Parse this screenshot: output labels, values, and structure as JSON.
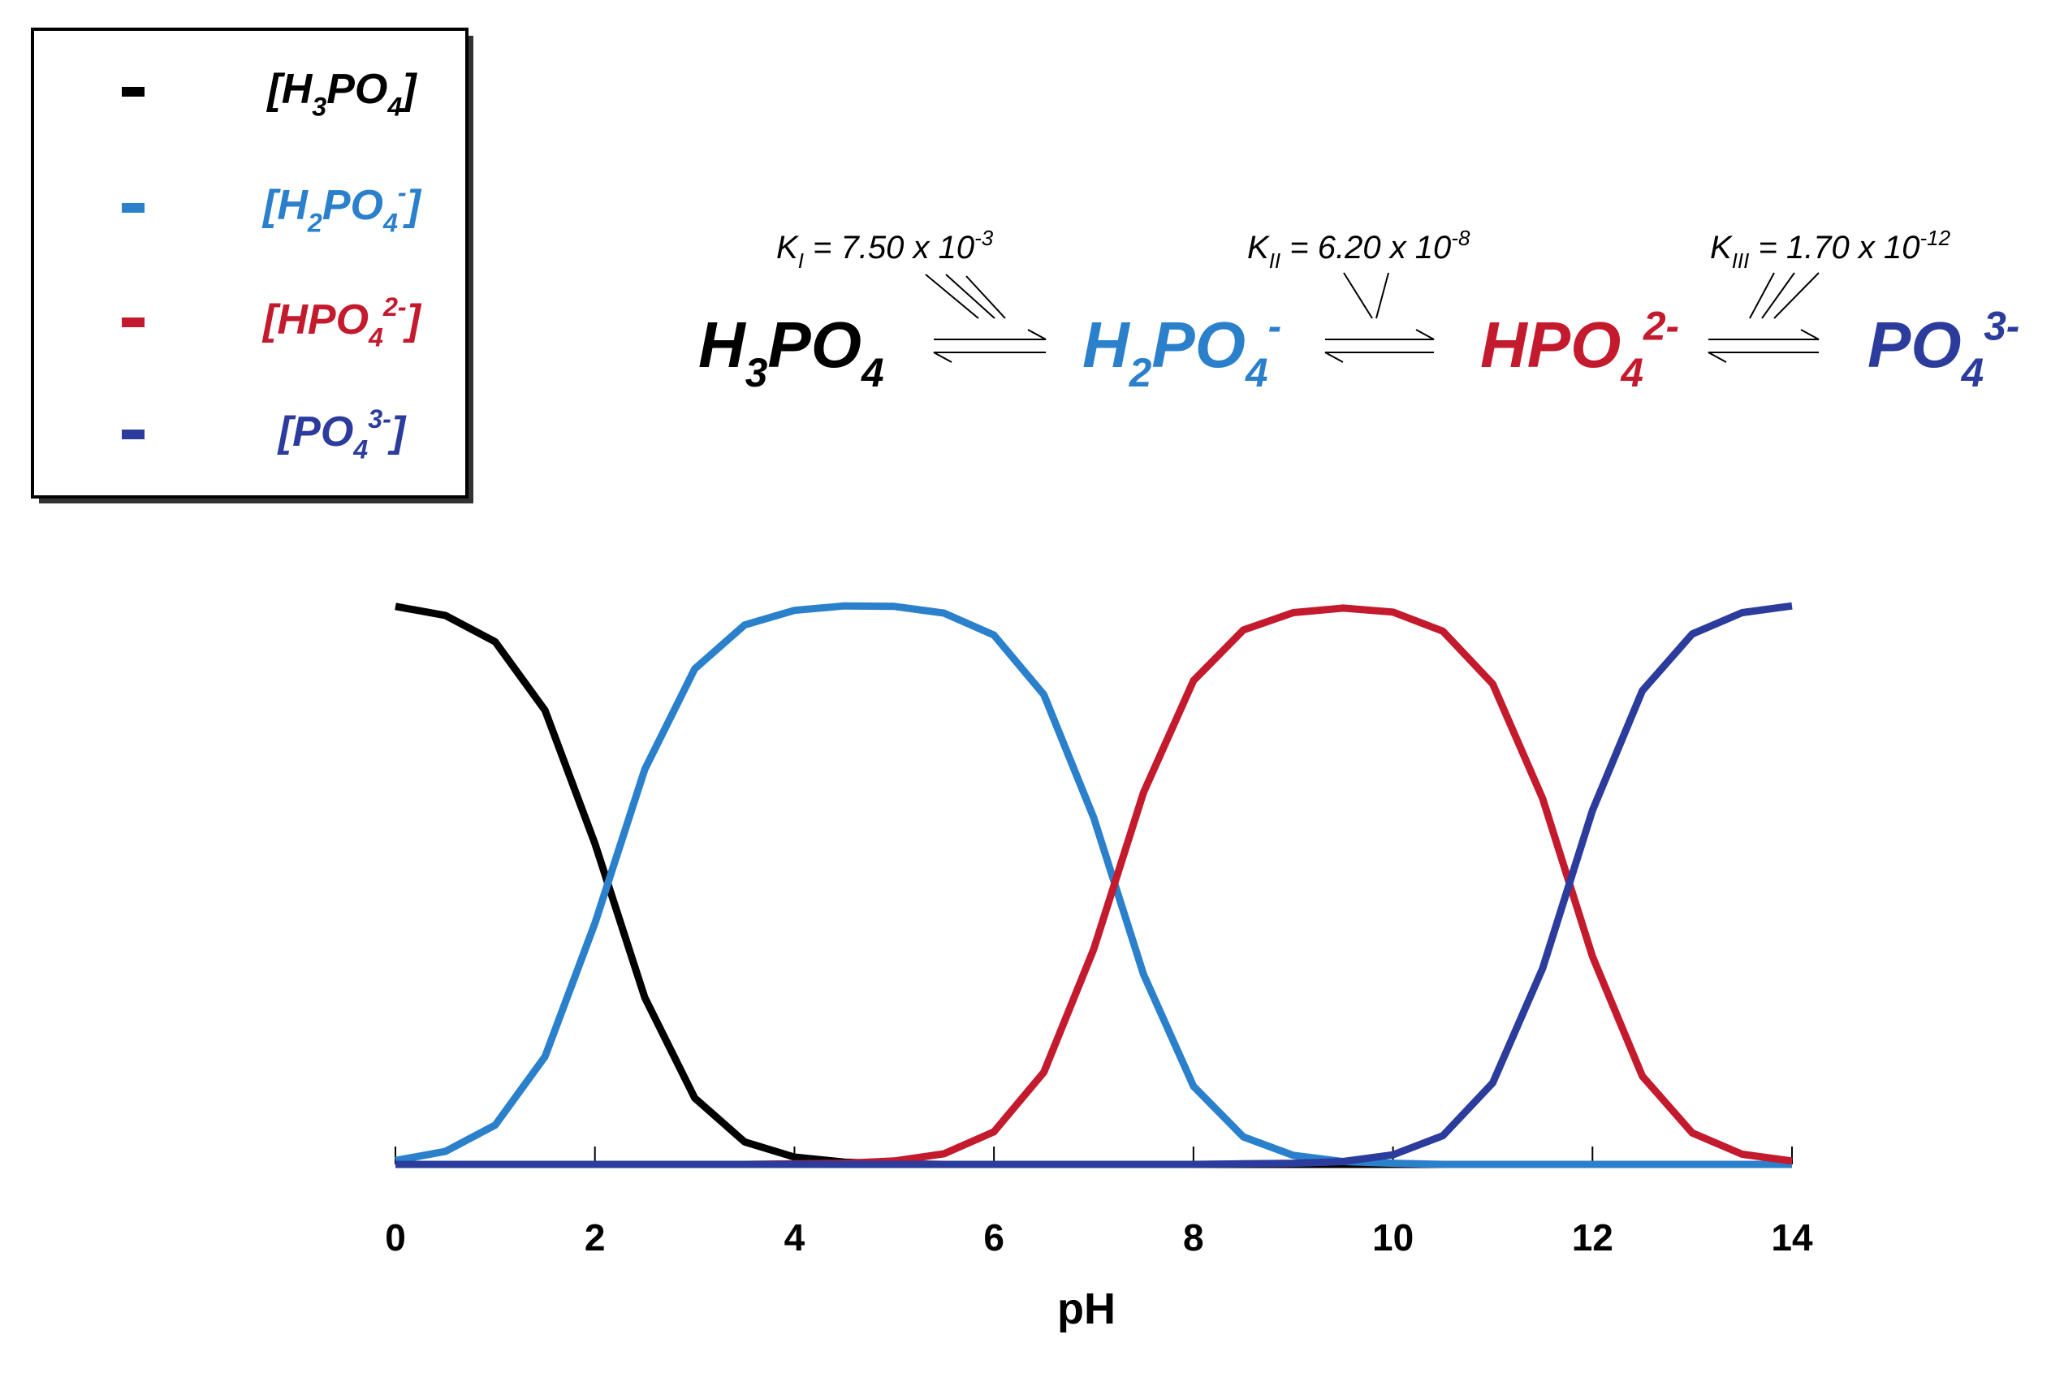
{
  "chart_data": {
    "type": "line",
    "x_label": "pH",
    "x": [
      0,
      0.5,
      1,
      1.5,
      2,
      2.5,
      3,
      3.5,
      4,
      4.5,
      5,
      5.5,
      6,
      6.5,
      7,
      7.5,
      8,
      8.5,
      9,
      9.5,
      10,
      10.5,
      11,
      11.5,
      12,
      12.5,
      13,
      13.5,
      14
    ],
    "xlim": [
      0,
      14
    ],
    "xticks": [
      0,
      2,
      4,
      6,
      8,
      10,
      12,
      14
    ],
    "ylim": [
      0,
      1
    ],
    "grid": false,
    "legend": "top-left",
    "series": [
      {
        "name": "[H3PO4]",
        "color": "#000000",
        "values": [
          0.993,
          0.977,
          0.93,
          0.808,
          0.571,
          0.297,
          0.118,
          0.04,
          0.013,
          0.004,
          0.001,
          0,
          0,
          0,
          0,
          0,
          0,
          0,
          0,
          0,
          0,
          0,
          0,
          0,
          0,
          0,
          0,
          0,
          0
        ]
      },
      {
        "name": "[H2PO4-]",
        "color": "#2b80cc",
        "values": [
          0.007,
          0.023,
          0.07,
          0.192,
          0.429,
          0.703,
          0.882,
          0.96,
          0.986,
          0.994,
          0.993,
          0.981,
          0.942,
          0.836,
          0.617,
          0.338,
          0.139,
          0.049,
          0.016,
          0.005,
          0.002,
          0,
          0,
          0,
          0,
          0,
          0,
          0,
          0
        ]
      },
      {
        "name": "[HPO42-]",
        "color": "#c41a2e",
        "values": [
          0,
          0,
          0,
          0,
          0,
          0,
          0,
          0,
          0.001,
          0.002,
          0.006,
          0.019,
          0.058,
          0.164,
          0.383,
          0.662,
          0.861,
          0.951,
          0.982,
          0.99,
          0.983,
          0.949,
          0.855,
          0.651,
          0.37,
          0.157,
          0.056,
          0.018,
          0.006
        ]
      },
      {
        "name": "[PO43-]",
        "color": "#2c3c9c",
        "values": [
          0,
          0,
          0,
          0,
          0,
          0,
          0,
          0,
          0,
          0,
          0,
          0,
          0,
          0,
          0,
          0,
          0,
          0.001,
          0.002,
          0.005,
          0.017,
          0.051,
          0.145,
          0.349,
          0.63,
          0.843,
          0.944,
          0.982,
          0.994
        ]
      }
    ],
    "annotations": {
      "species": [
        "H3PO4",
        "H2PO4-",
        "HPO42-",
        "PO43-"
      ],
      "constants": [
        {
          "symbol": "K",
          "index": "I",
          "text": " = 7.50 x 10",
          "exponent": "-3"
        },
        {
          "symbol": "K",
          "index": "II",
          "text": " = 6.20 x 10",
          "exponent": "-8"
        },
        {
          "symbol": "K",
          "index": "III",
          "text": " = 1.70 x 10",
          "exponent": "-12"
        }
      ]
    }
  }
}
